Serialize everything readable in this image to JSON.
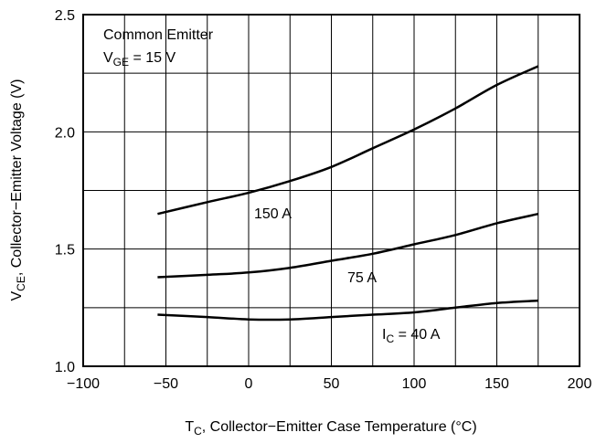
{
  "chart_data": {
    "type": "line",
    "xlabel": {
      "main": "T",
      "sub": "C",
      "rest": ", Collector−Emitter Case Temperature (°C)"
    },
    "ylabel": {
      "main": "V",
      "sub": "CE",
      "rest": ", Collector−Emitter Voltage (V)"
    },
    "xlim": [
      -100,
      200
    ],
    "ylim": [
      1.0,
      2.5
    ],
    "x_ticks": [
      -100,
      -50,
      0,
      50,
      100,
      150,
      200
    ],
    "x_tick_labels": [
      "−100",
      "−50",
      "0",
      "50",
      "100",
      "150",
      "200"
    ],
    "y_ticks": [
      1.0,
      1.5,
      2.0,
      2.5
    ],
    "y_tick_labels": [
      "1.0",
      "1.5",
      "2.0",
      "2.5"
    ],
    "grid": true,
    "grid_x_step": 25,
    "grid_y_step": 0.25,
    "annotation": {
      "line1": "Common Emitter",
      "line2": {
        "main": "V",
        "sub": "GE",
        "rest": " = 15 V"
      }
    },
    "series": [
      {
        "label": "150 A",
        "x": [
          -55,
          -25,
          0,
          25,
          50,
          75,
          100,
          125,
          150,
          175
        ],
        "y": [
          1.65,
          1.7,
          1.74,
          1.79,
          1.85,
          1.93,
          2.01,
          2.1,
          2.2,
          2.28
        ]
      },
      {
        "label": "75 A",
        "x": [
          -55,
          -25,
          0,
          25,
          50,
          75,
          100,
          125,
          150,
          175
        ],
        "y": [
          1.38,
          1.39,
          1.4,
          1.42,
          1.45,
          1.48,
          1.52,
          1.56,
          1.61,
          1.65
        ]
      },
      {
        "label": {
          "main": "I",
          "sub": "C",
          "rest": " = 40 A"
        },
        "x": [
          -55,
          -25,
          0,
          25,
          50,
          75,
          100,
          125,
          150,
          175
        ],
        "y": [
          1.22,
          1.21,
          1.2,
          1.2,
          1.21,
          1.22,
          1.23,
          1.25,
          1.27,
          1.28
        ]
      }
    ]
  }
}
